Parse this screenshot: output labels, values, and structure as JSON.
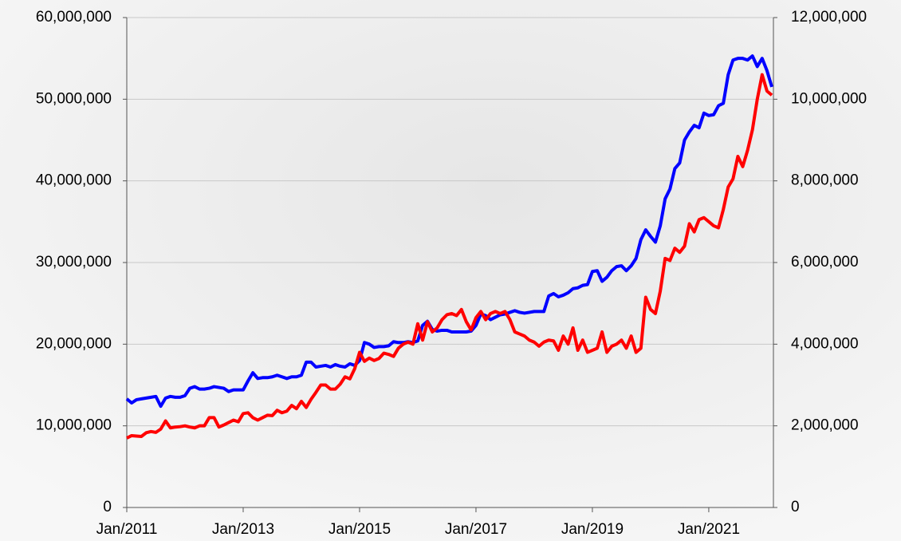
{
  "chart_data": {
    "type": "line",
    "x": [
      "2011-01",
      "2011-02",
      "2011-03",
      "2011-04",
      "2011-05",
      "2011-06",
      "2011-07",
      "2011-08",
      "2011-09",
      "2011-10",
      "2011-11",
      "2011-12",
      "2012-01",
      "2012-02",
      "2012-03",
      "2012-04",
      "2012-05",
      "2012-06",
      "2012-07",
      "2012-08",
      "2012-09",
      "2012-10",
      "2012-11",
      "2012-12",
      "2013-01",
      "2013-02",
      "2013-03",
      "2013-04",
      "2013-05",
      "2013-06",
      "2013-07",
      "2013-08",
      "2013-09",
      "2013-10",
      "2013-11",
      "2013-12",
      "2014-01",
      "2014-02",
      "2014-03",
      "2014-04",
      "2014-05",
      "2014-06",
      "2014-07",
      "2014-08",
      "2014-09",
      "2014-10",
      "2014-11",
      "2014-12",
      "2015-01",
      "2015-02",
      "2015-03",
      "2015-04",
      "2015-05",
      "2015-06",
      "2015-07",
      "2015-08",
      "2015-09",
      "2015-10",
      "2015-11",
      "2015-12",
      "2016-01",
      "2016-02",
      "2016-03",
      "2016-04",
      "2016-05",
      "2016-06",
      "2016-07",
      "2016-08",
      "2016-09",
      "2016-10",
      "2016-11",
      "2016-12",
      "2017-01",
      "2017-02",
      "2017-03",
      "2017-04",
      "2017-05",
      "2017-06",
      "2017-07",
      "2017-08",
      "2017-09",
      "2017-10",
      "2017-11",
      "2017-12",
      "2018-01",
      "2018-02",
      "2018-03",
      "2018-04",
      "2018-05",
      "2018-06",
      "2018-07",
      "2018-08",
      "2018-09",
      "2018-10",
      "2018-11",
      "2018-12",
      "2019-01",
      "2019-02",
      "2019-03",
      "2019-04",
      "2019-05",
      "2019-06",
      "2019-07",
      "2019-08",
      "2019-09",
      "2019-10",
      "2019-11",
      "2019-12",
      "2020-01",
      "2020-02",
      "2020-03",
      "2020-04",
      "2020-05",
      "2020-06",
      "2020-07",
      "2020-08",
      "2020-09",
      "2020-10",
      "2020-11",
      "2020-12",
      "2021-01",
      "2021-02",
      "2021-03",
      "2021-04",
      "2021-05",
      "2021-06",
      "2021-07",
      "2021-08",
      "2021-09",
      "2021-10",
      "2021-11",
      "2021-12",
      "2022-01",
      "2022-02"
    ],
    "series": [
      {
        "color": "#0000ff",
        "values": [
          13300000,
          12800000,
          13200000,
          13300000,
          13400000,
          13500000,
          13600000,
          12400000,
          13400000,
          13600000,
          13500000,
          13500000,
          13700000,
          14600000,
          14800000,
          14500000,
          14500000,
          14600000,
          14800000,
          14700000,
          14600000,
          14200000,
          14400000,
          14400000,
          14400000,
          15500000,
          16500000,
          15800000,
          15900000,
          15900000,
          16000000,
          16200000,
          16000000,
          15800000,
          16000000,
          16000000,
          16200000,
          17800000,
          17800000,
          17200000,
          17300000,
          17400000,
          17200000,
          17500000,
          17300000,
          17200000,
          17600000,
          17400000,
          18000000,
          20200000,
          20000000,
          19600000,
          19700000,
          19700000,
          19800000,
          20300000,
          20200000,
          20200000,
          20300000,
          20200000,
          20400000,
          22300000,
          22800000,
          21800000,
          21600000,
          21700000,
          21700000,
          21500000,
          21500000,
          21500000,
          21500000,
          21600000,
          22300000,
          23700000,
          23500000,
          23000000,
          23300000,
          23600000,
          23700000,
          23900000,
          24100000,
          23900000,
          23800000,
          23900000,
          24000000,
          24000000,
          24000000,
          25900000,
          26200000,
          25800000,
          26000000,
          26300000,
          26800000,
          26900000,
          27200000,
          27300000,
          28900000,
          29000000,
          27700000,
          28200000,
          29000000,
          29500000,
          29600000,
          29000000,
          29600000,
          30500000,
          32800000,
          34000000,
          33200000,
          32500000,
          34500000,
          37800000,
          39000000,
          41500000,
          42200000,
          45000000,
          46000000,
          46800000,
          46500000,
          48300000,
          48000000,
          48100000,
          49200000,
          49500000,
          53000000,
          54800000,
          55000000,
          55000000,
          54800000,
          55300000,
          54000000,
          55000000,
          53500000,
          51500000
        ]
      },
      {
        "color": "#ff0000",
        "axis": "y2",
        "values": [
          1700000,
          1760000,
          1750000,
          1740000,
          1830000,
          1860000,
          1840000,
          1920000,
          2120000,
          1950000,
          1970000,
          1980000,
          2000000,
          1970000,
          1950000,
          2000000,
          2000000,
          2200000,
          2200000,
          1970000,
          2020000,
          2080000,
          2140000,
          2100000,
          2300000,
          2320000,
          2200000,
          2140000,
          2200000,
          2260000,
          2250000,
          2380000,
          2320000,
          2360000,
          2500000,
          2420000,
          2600000,
          2450000,
          2650000,
          2820000,
          3000000,
          3000000,
          2900000,
          2900000,
          3020000,
          3200000,
          3150000,
          3400000,
          3800000,
          3580000,
          3660000,
          3600000,
          3650000,
          3780000,
          3750000,
          3700000,
          3900000,
          4000000,
          4050000,
          4000000,
          4500000,
          4100000,
          4550000,
          4300000,
          4400000,
          4600000,
          4720000,
          4750000,
          4700000,
          4850000,
          4550000,
          4350000,
          4650000,
          4800000,
          4600000,
          4750000,
          4800000,
          4750000,
          4800000,
          4600000,
          4300000,
          4250000,
          4200000,
          4100000,
          4050000,
          3950000,
          4050000,
          4100000,
          4080000,
          3850000,
          4200000,
          4000000,
          4400000,
          3850000,
          4100000,
          3800000,
          3850000,
          3900000,
          4300000,
          3800000,
          3950000,
          4000000,
          4100000,
          3900000,
          4200000,
          3800000,
          3900000,
          5150000,
          4850000,
          4750000,
          5300000,
          6100000,
          6050000,
          6350000,
          6250000,
          6400000,
          6950000,
          6750000,
          7050000,
          7100000,
          7000000,
          6900000,
          6850000,
          7300000,
          7850000,
          8050000,
          8600000,
          8350000,
          8750000,
          9250000,
          10000000,
          10600000,
          10200000,
          10100000
        ]
      }
    ],
    "xlim": [
      "2011-01",
      "2022-02"
    ],
    "xticks": [
      {
        "value": "2011-01",
        "label": "Jan/2011"
      },
      {
        "value": "2013-01",
        "label": "Jan/2013"
      },
      {
        "value": "2015-01",
        "label": "Jan/2015"
      },
      {
        "value": "2017-01",
        "label": "Jan/2017"
      },
      {
        "value": "2019-01",
        "label": "Jan/2019"
      },
      {
        "value": "2021-01",
        "label": "Jan/2021"
      }
    ],
    "ylim": [
      0,
      60000000
    ],
    "yticks": [
      0,
      {
        "value": 10000000,
        "label": "10,000,000"
      },
      {
        "value": 20000000,
        "label": "20,000,000"
      },
      {
        "value": 30000000,
        "label": "30,000,000"
      },
      {
        "value": 40000000,
        "label": "40,000,000"
      },
      {
        "value": 50000000,
        "label": "50,000,000"
      },
      {
        "value": 60000000,
        "label": "60,000,000"
      }
    ],
    "y2lim": [
      0,
      12000000
    ],
    "y2ticks": [
      0,
      {
        "value": 2000000,
        "label": "2,000,000"
      },
      {
        "value": 4000000,
        "label": "4,000,000"
      },
      {
        "value": 6000000,
        "label": "6,000,000"
      },
      {
        "value": 8000000,
        "label": "8,000,000"
      },
      {
        "value": 10000000,
        "label": "10,000,000"
      },
      {
        "value": 12000000,
        "label": "12,000,000"
      }
    ],
    "grid": true
  }
}
